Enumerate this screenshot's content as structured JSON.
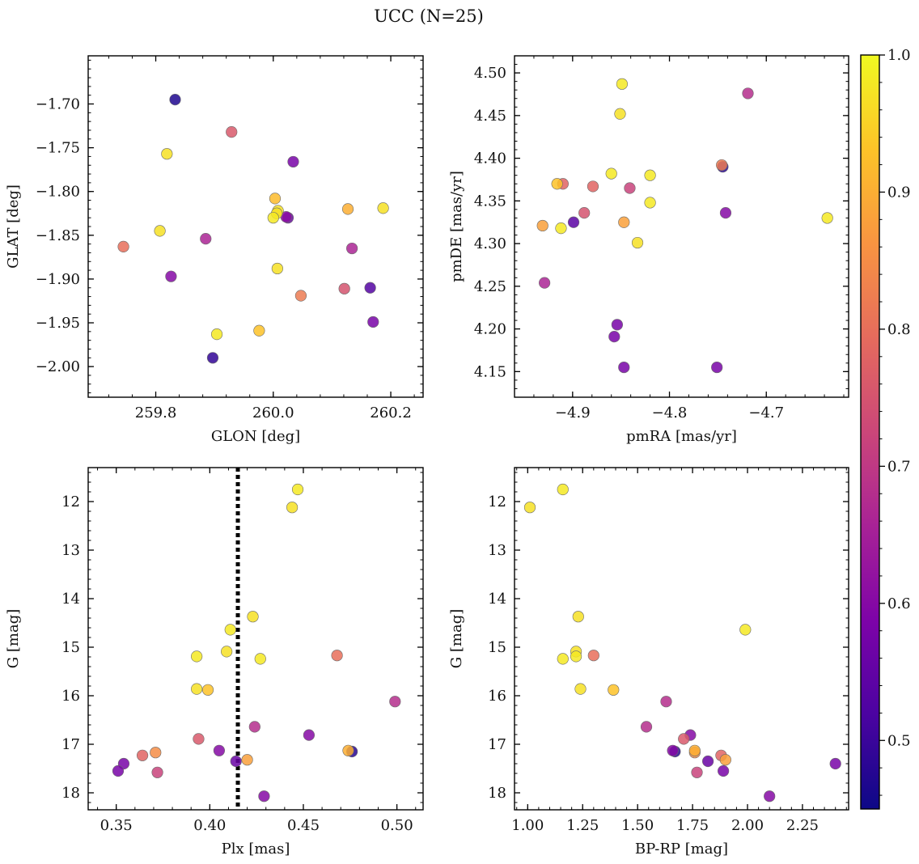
{
  "suptitle": "UCC (N=25)",
  "colorbar": {
    "range": [
      0.45,
      1.0
    ],
    "ticks": [
      0.5,
      0.6,
      0.7,
      0.8,
      0.9,
      1.0
    ],
    "tick_labels": [
      "0.5",
      "0.6",
      "0.7",
      "0.8",
      "0.9",
      "1.0"
    ],
    "colormap": "plasma"
  },
  "chart_data": [
    {
      "type": "scatter",
      "xlabel": "GLON [deg]",
      "ylabel": "GLAT [deg]",
      "xlim": [
        259.685,
        260.255
      ],
      "ylim": [
        -2.035,
        -1.645
      ],
      "xticks": [
        259.8,
        260.0,
        260.2
      ],
      "xtick_labels": [
        "259.8",
        "260.0",
        "260.2"
      ],
      "yticks": [
        -1.7,
        -1.75,
        -1.8,
        -1.85,
        -1.9,
        -1.95,
        -2.0
      ],
      "ytick_labels": [
        "−1.70",
        "−1.75",
        "−1.80",
        "−1.85",
        "−1.90",
        "−1.95",
        "−2.00"
      ],
      "points": [
        {
          "x": 259.833,
          "y": -1.695,
          "c": 0.47
        },
        {
          "x": 259.929,
          "y": -1.732,
          "c": 0.76
        },
        {
          "x": 259.819,
          "y": -1.757,
          "c": 0.97
        },
        {
          "x": 260.034,
          "y": -1.766,
          "c": 0.58
        },
        {
          "x": 260.003,
          "y": -1.808,
          "c": 0.92
        },
        {
          "x": 260.008,
          "y": -1.822,
          "c": 0.97
        },
        {
          "x": 260.006,
          "y": -1.825,
          "c": 0.97
        },
        {
          "x": 260.0,
          "y": -1.83,
          "c": 0.98
        },
        {
          "x": 260.025,
          "y": -1.83,
          "c": 0.56
        },
        {
          "x": 260.127,
          "y": -1.82,
          "c": 0.9
        },
        {
          "x": 260.187,
          "y": -1.819,
          "c": 0.97
        },
        {
          "x": 259.807,
          "y": -1.845,
          "c": 0.97
        },
        {
          "x": 259.885,
          "y": -1.854,
          "c": 0.66
        },
        {
          "x": 259.745,
          "y": -1.863,
          "c": 0.8
        },
        {
          "x": 260.134,
          "y": -1.865,
          "c": 0.66
        },
        {
          "x": 260.007,
          "y": -1.888,
          "c": 0.97
        },
        {
          "x": 259.826,
          "y": -1.897,
          "c": 0.6
        },
        {
          "x": 260.121,
          "y": -1.911,
          "c": 0.75
        },
        {
          "x": 260.165,
          "y": -1.91,
          "c": 0.53
        },
        {
          "x": 260.047,
          "y": -1.919,
          "c": 0.82
        },
        {
          "x": 260.17,
          "y": -1.949,
          "c": 0.58
        },
        {
          "x": 259.976,
          "y": -1.959,
          "c": 0.93
        },
        {
          "x": 259.904,
          "y": -1.963,
          "c": 0.98
        },
        {
          "x": 259.897,
          "y": -1.99,
          "c": 0.49
        },
        {
          "x": 260.022,
          "y": -1.829,
          "c": 0.61
        }
      ]
    },
    {
      "type": "scatter",
      "xlabel": "pmRA [mas/yr]",
      "ylabel": "pmDE [mas/yr]",
      "xlim": [
        -4.96,
        -4.615
      ],
      "ylim": [
        4.12,
        4.52
      ],
      "xticks": [
        -4.9,
        -4.8,
        -4.7
      ],
      "xtick_labels": [
        "−4.9",
        "−4.8",
        "−4.7"
      ],
      "yticks": [
        4.15,
        4.2,
        4.25,
        4.3,
        4.35,
        4.4,
        4.45,
        4.5
      ],
      "ytick_labels": [
        "4.15",
        "4.20",
        "4.25",
        "4.30",
        "4.35",
        "4.40",
        "4.45",
        "4.50"
      ],
      "points": [
        {
          "x": -4.849,
          "y": 4.487,
          "c": 0.98
        },
        {
          "x": -4.719,
          "y": 4.476,
          "c": 0.68
        },
        {
          "x": -4.851,
          "y": 4.452,
          "c": 0.97
        },
        {
          "x": -4.745,
          "y": 4.39,
          "c": 0.48
        },
        {
          "x": -4.746,
          "y": 4.392,
          "c": 0.82
        },
        {
          "x": -4.86,
          "y": 4.382,
          "c": 0.98
        },
        {
          "x": -4.82,
          "y": 4.38,
          "c": 0.98
        },
        {
          "x": -4.916,
          "y": 4.37,
          "c": 0.93
        },
        {
          "x": -4.91,
          "y": 4.37,
          "c": 0.78
        },
        {
          "x": -4.879,
          "y": 4.367,
          "c": 0.78
        },
        {
          "x": -4.841,
          "y": 4.365,
          "c": 0.72
        },
        {
          "x": -4.82,
          "y": 4.348,
          "c": 0.98
        },
        {
          "x": -4.888,
          "y": 4.336,
          "c": 0.75
        },
        {
          "x": -4.742,
          "y": 4.336,
          "c": 0.6
        },
        {
          "x": -4.637,
          "y": 4.33,
          "c": 0.98
        },
        {
          "x": -4.899,
          "y": 4.325,
          "c": 0.54
        },
        {
          "x": -4.847,
          "y": 4.325,
          "c": 0.88
        },
        {
          "x": -4.931,
          "y": 4.321,
          "c": 0.88
        },
        {
          "x": -4.912,
          "y": 4.318,
          "c": 0.98
        },
        {
          "x": -4.833,
          "y": 4.301,
          "c": 0.97
        },
        {
          "x": -4.929,
          "y": 4.254,
          "c": 0.66
        },
        {
          "x": -4.854,
          "y": 4.205,
          "c": 0.58
        },
        {
          "x": -4.857,
          "y": 4.191,
          "c": 0.58
        },
        {
          "x": -4.847,
          "y": 4.155,
          "c": 0.58
        },
        {
          "x": -4.751,
          "y": 4.155,
          "c": 0.58
        }
      ]
    },
    {
      "type": "scatter",
      "xlabel": "Plx [mas]",
      "ylabel": "G [mag]",
      "xlim": [
        0.335,
        0.514
      ],
      "ylim": [
        18.35,
        11.3
      ],
      "reference_line": {
        "x": 0.415,
        "style": "dotted"
      },
      "xticks": [
        0.35,
        0.4,
        0.45,
        0.5
      ],
      "xtick_labels": [
        "0.35",
        "0.40",
        "0.45",
        "0.50"
      ],
      "yticks": [
        12,
        13,
        14,
        15,
        16,
        17,
        18
      ],
      "ytick_labels": [
        "12",
        "13",
        "14",
        "15",
        "16",
        "17",
        "18"
      ],
      "points": [
        {
          "x": 0.447,
          "y": 11.75,
          "c": 0.98
        },
        {
          "x": 0.444,
          "y": 12.12,
          "c": 0.97
        },
        {
          "x": 0.423,
          "y": 14.37,
          "c": 0.97
        },
        {
          "x": 0.411,
          "y": 14.64,
          "c": 0.98
        },
        {
          "x": 0.409,
          "y": 15.09,
          "c": 0.97
        },
        {
          "x": 0.468,
          "y": 15.17,
          "c": 0.8
        },
        {
          "x": 0.393,
          "y": 15.19,
          "c": 0.98
        },
        {
          "x": 0.427,
          "y": 15.24,
          "c": 0.98
        },
        {
          "x": 0.393,
          "y": 15.86,
          "c": 0.97
        },
        {
          "x": 0.399,
          "y": 15.88,
          "c": 0.93
        },
        {
          "x": 0.499,
          "y": 16.12,
          "c": 0.68
        },
        {
          "x": 0.424,
          "y": 16.64,
          "c": 0.68
        },
        {
          "x": 0.453,
          "y": 16.81,
          "c": 0.6
        },
        {
          "x": 0.394,
          "y": 16.89,
          "c": 0.76
        },
        {
          "x": 0.405,
          "y": 17.13,
          "c": 0.6
        },
        {
          "x": 0.476,
          "y": 17.15,
          "c": 0.48
        },
        {
          "x": 0.474,
          "y": 17.13,
          "c": 0.9
        },
        {
          "x": 0.371,
          "y": 17.17,
          "c": 0.85
        },
        {
          "x": 0.364,
          "y": 17.23,
          "c": 0.78
        },
        {
          "x": 0.42,
          "y": 17.32,
          "c": 0.88
        },
        {
          "x": 0.414,
          "y": 17.35,
          "c": 0.56
        },
        {
          "x": 0.354,
          "y": 17.4,
          "c": 0.58
        },
        {
          "x": 0.351,
          "y": 17.55,
          "c": 0.58
        },
        {
          "x": 0.372,
          "y": 17.58,
          "c": 0.72
        },
        {
          "x": 0.429,
          "y": 18.07,
          "c": 0.6
        }
      ]
    },
    {
      "type": "scatter",
      "xlabel": "BP-RP [mag]",
      "ylabel": "G [mag]",
      "xlim": [
        0.94,
        2.46
      ],
      "ylim": [
        18.35,
        11.3
      ],
      "xticks": [
        1.0,
        1.25,
        1.5,
        1.75,
        2.0,
        2.25
      ],
      "xtick_labels": [
        "1.00",
        "1.25",
        "1.50",
        "1.75",
        "2.00",
        "2.25"
      ],
      "yticks": [
        12,
        13,
        14,
        15,
        16,
        17,
        18
      ],
      "ytick_labels": [
        "12",
        "13",
        "14",
        "15",
        "16",
        "17",
        "18"
      ],
      "points": [
        {
          "x": 1.16,
          "y": 11.75,
          "c": 0.98
        },
        {
          "x": 1.01,
          "y": 12.12,
          "c": 0.97
        },
        {
          "x": 1.23,
          "y": 14.37,
          "c": 0.97
        },
        {
          "x": 1.99,
          "y": 14.64,
          "c": 0.98
        },
        {
          "x": 1.22,
          "y": 15.09,
          "c": 0.97
        },
        {
          "x": 1.3,
          "y": 15.17,
          "c": 0.8
        },
        {
          "x": 1.22,
          "y": 15.19,
          "c": 0.98
        },
        {
          "x": 1.16,
          "y": 15.24,
          "c": 0.98
        },
        {
          "x": 1.24,
          "y": 15.86,
          "c": 0.97
        },
        {
          "x": 1.39,
          "y": 15.88,
          "c": 0.93
        },
        {
          "x": 1.63,
          "y": 16.12,
          "c": 0.68
        },
        {
          "x": 1.54,
          "y": 16.64,
          "c": 0.68
        },
        {
          "x": 1.74,
          "y": 16.81,
          "c": 0.6
        },
        {
          "x": 1.71,
          "y": 16.89,
          "c": 0.76
        },
        {
          "x": 1.66,
          "y": 17.13,
          "c": 0.6
        },
        {
          "x": 1.67,
          "y": 17.15,
          "c": 0.48
        },
        {
          "x": 1.76,
          "y": 17.13,
          "c": 0.9
        },
        {
          "x": 1.76,
          "y": 17.17,
          "c": 0.85
        },
        {
          "x": 1.88,
          "y": 17.23,
          "c": 0.78
        },
        {
          "x": 1.9,
          "y": 17.32,
          "c": 0.88
        },
        {
          "x": 1.82,
          "y": 17.35,
          "c": 0.56
        },
        {
          "x": 2.4,
          "y": 17.4,
          "c": 0.58
        },
        {
          "x": 1.89,
          "y": 17.55,
          "c": 0.58
        },
        {
          "x": 1.77,
          "y": 17.58,
          "c": 0.72
        },
        {
          "x": 2.1,
          "y": 18.07,
          "c": 0.6
        }
      ]
    }
  ]
}
